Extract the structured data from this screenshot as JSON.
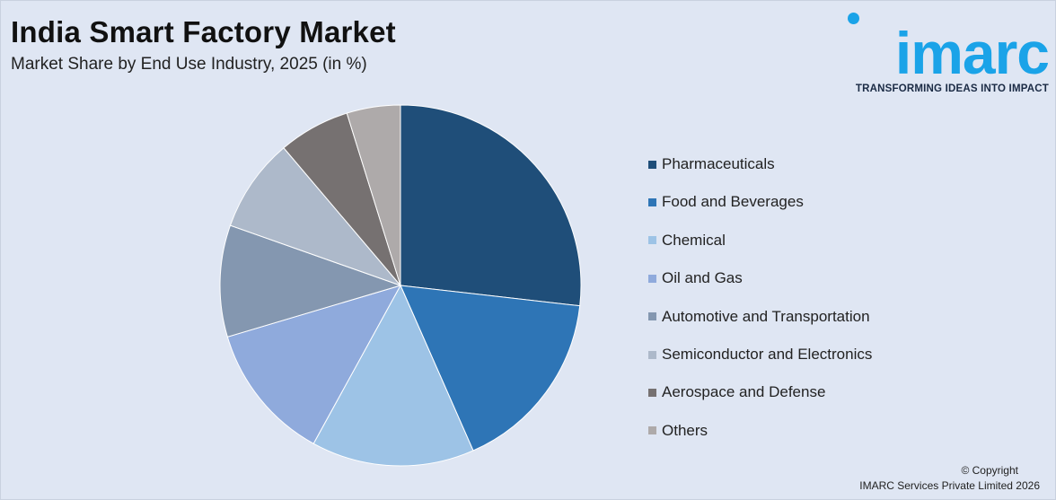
{
  "header": {
    "title": "India Smart Factory Market",
    "subtitle": "Market Share by End Use Industry, 2025 (in %)"
  },
  "logo": {
    "word": "imarc",
    "tagline": "TRANSFORMING IDEAS INTO IMPACT",
    "color": "#1aa3e8"
  },
  "chart_data": {
    "type": "pie",
    "title": "India Smart Factory Market",
    "subtitle": "Market Share by End Use Industry, 2025 (in %)",
    "legend_position": "right",
    "slices": [
      {
        "label": "Pharmaceuticals",
        "value": 26.8,
        "color": "#1f4e79"
      },
      {
        "label": "Food and Beverages",
        "value": 16.6,
        "color": "#2e75b6"
      },
      {
        "label": "Chemical",
        "value": 14.6,
        "color": "#9dc3e6"
      },
      {
        "label": "Oil and Gas",
        "value": 12.4,
        "color": "#8faadc"
      },
      {
        "label": "Automotive and Transportation",
        "value": 10.0,
        "color": "#8497b0"
      },
      {
        "label": "Semiconductor and Electronics",
        "value": 8.4,
        "color": "#adb9ca"
      },
      {
        "label": "Aerospace and Defense",
        "value": 6.4,
        "color": "#767171"
      },
      {
        "label": "Others",
        "value": 4.8,
        "color": "#aeaaaa"
      }
    ]
  },
  "footer": {
    "copyright": "© Copyright",
    "company": "IMARC Services Private Limited 2026"
  }
}
